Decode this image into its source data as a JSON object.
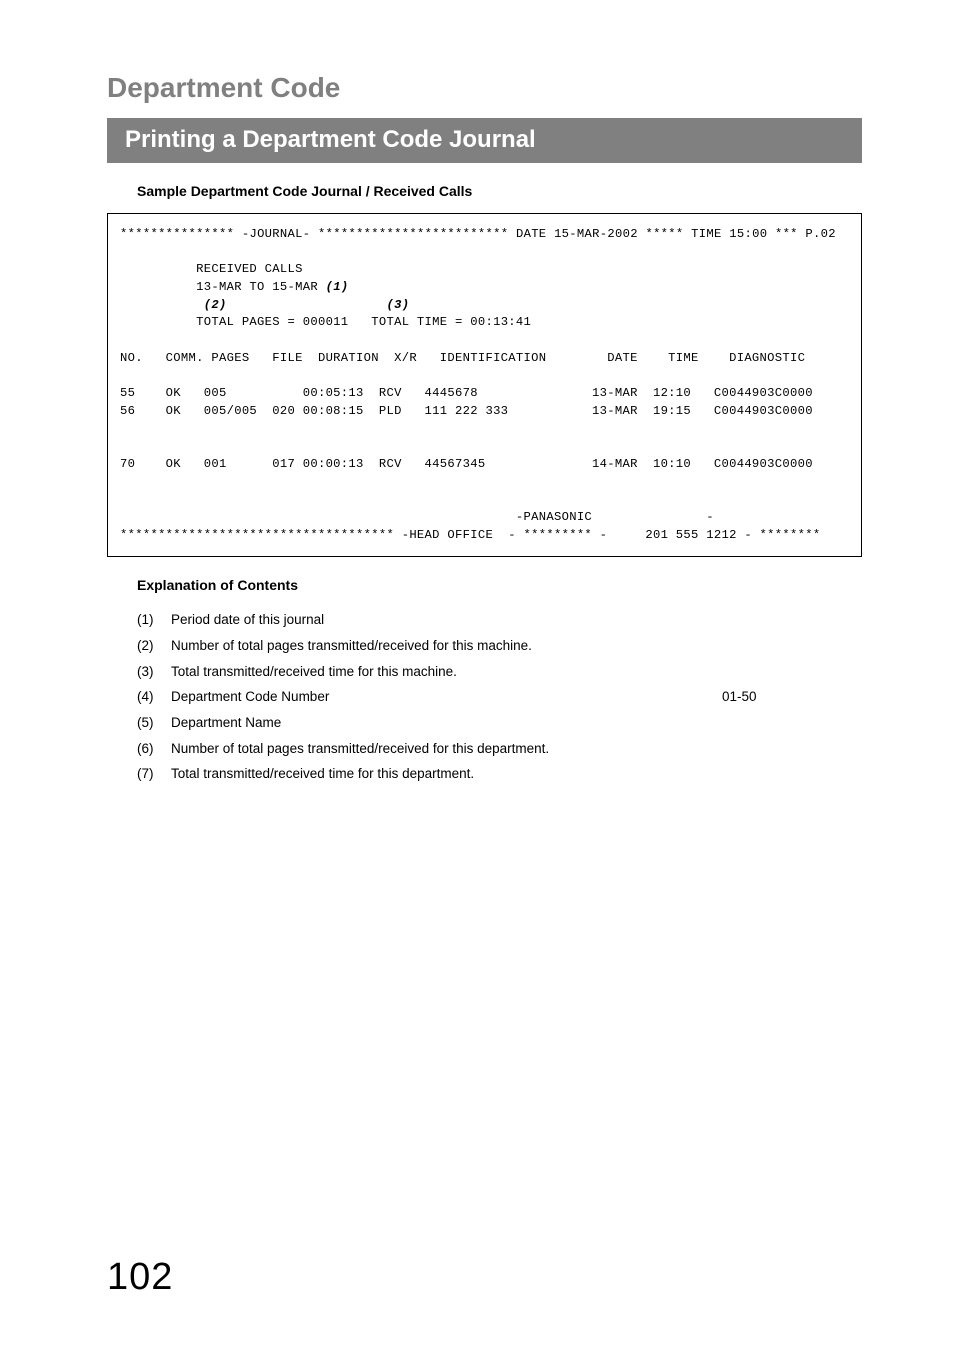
{
  "section_title": "Department Code",
  "subsection_title": "Printing a Department Code Journal",
  "sample_heading": "Sample Department Code Journal / Received Calls",
  "journal": {
    "top_line": {
      "stars1": "***************",
      "label": "-JOURNAL-",
      "stars2": "*************************",
      "date_label": "DATE",
      "date_val": "15-MAR-2002",
      "stars3": "*****",
      "time_label": "TIME",
      "time_val": "15:00",
      "stars4": "***",
      "page": "P.02"
    },
    "received_calls": "RECEIVED CALLS",
    "period": "13-MAR TO 15-MAR",
    "ref1": "(1)",
    "ref2": "(2)",
    "ref3": "(3)",
    "totals_line": "TOTAL PAGES = 000011   TOTAL TIME = 00:13:41",
    "col_headers": "NO.   COMM. PAGES   FILE  DURATION  X/R   IDENTIFICATION        DATE    TIME    DIAGNOSTIC",
    "rows": [
      "55    OK   005          00:05:13  RCV   4445678               13-MAR  12:10   C0044903C0000",
      "56    OK   005/005  020 00:08:15  PLD   111 222 333           13-MAR  19:15   C0044903C0000",
      "",
      "",
      "70    OK   001      017 00:00:13  RCV   44567345              14-MAR  10:10   C0044903C0000"
    ],
    "footer1": "                                                    -PANASONIC               -",
    "footer2": "************************************ -HEAD OFFICE  - ********* -     201 555 1212 - ********"
  },
  "explanation_heading": "Explanation of Contents",
  "explanations": [
    {
      "n": "(1)",
      "text": "Period date of this journal",
      "val": ""
    },
    {
      "n": "(2)",
      "text": "Number of total pages transmitted/received for this machine.",
      "val": ""
    },
    {
      "n": "(3)",
      "text": "Total transmitted/received time for this machine.",
      "val": ""
    },
    {
      "n": "(4)",
      "text": "Department Code Number",
      "val": "01-50"
    },
    {
      "n": "(5)",
      "text": "Department Name",
      "val": ""
    },
    {
      "n": "(6)",
      "text": "Number of total pages transmitted/received for this department.",
      "val": ""
    },
    {
      "n": "(7)",
      "text": "Total transmitted/received time for this department.",
      "val": ""
    }
  ],
  "page_number": "102"
}
